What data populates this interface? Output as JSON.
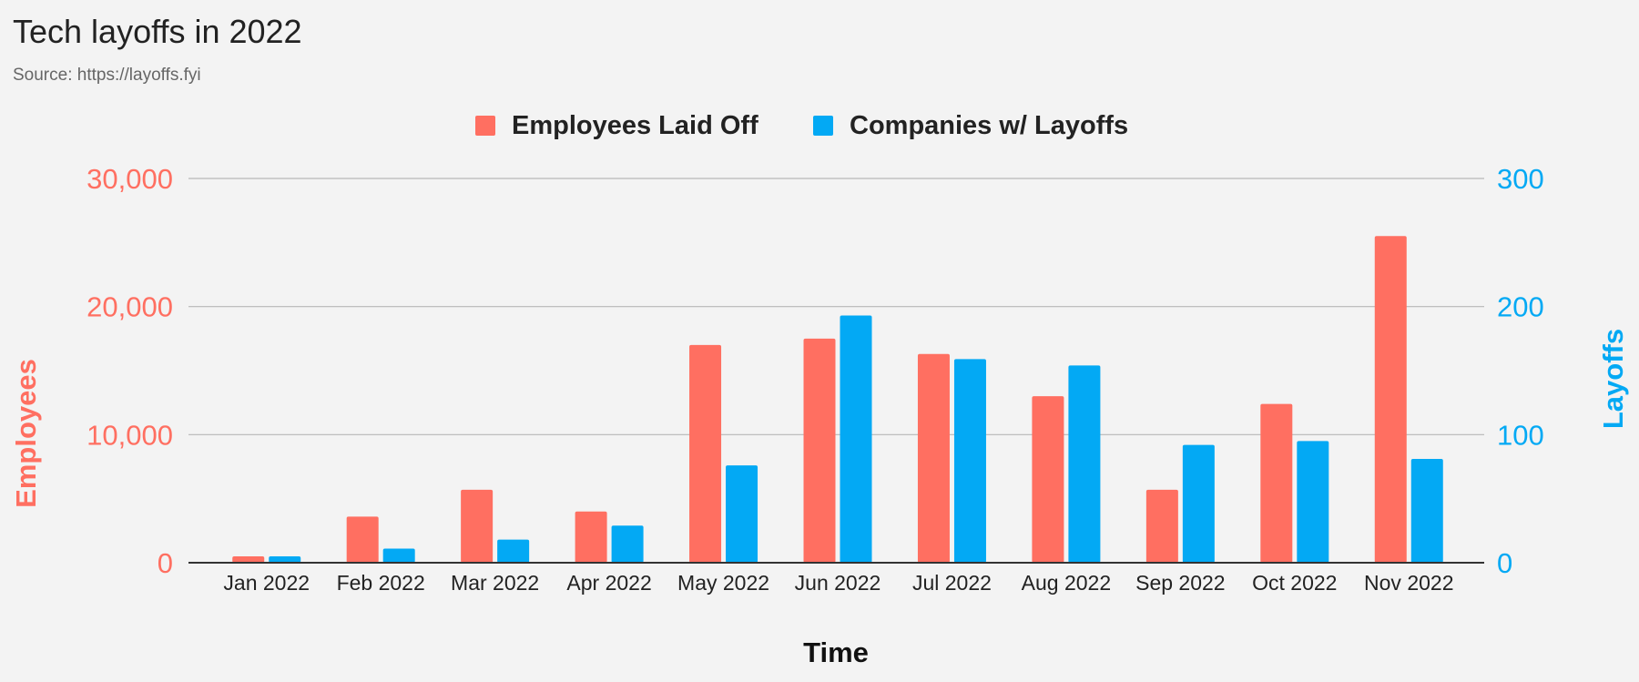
{
  "header": {
    "title": "Tech layoffs in 2022",
    "subtitle": "Source: https://layoffs.fyi"
  },
  "colors": {
    "employees": "#ff6f61",
    "companies": "#03a9f4",
    "gridline": "#b7b7b7",
    "baseline": "#333333",
    "text": "#222222",
    "subtitle": "#666666",
    "background": "#f3f3f3"
  },
  "chart_data": {
    "type": "bar",
    "title": "Tech layoffs in 2022",
    "subtitle": "Source: https://layoffs.fyi",
    "xlabel": "Time",
    "ylabel_left": "Employees",
    "ylabel_right": "Layoffs",
    "legend_position": "top-center",
    "grid": true,
    "categories": [
      "Jan 2022",
      "Feb 2022",
      "Mar 2022",
      "Apr 2022",
      "May 2022",
      "Jun 2022",
      "Jul 2022",
      "Aug 2022",
      "Sep 2022",
      "Oct 2022",
      "Nov 2022"
    ],
    "ylim_left": [
      0,
      30000
    ],
    "ylim_right": [
      0,
      300
    ],
    "yticks_left": [
      "0",
      "10,000",
      "20,000",
      "30,000"
    ],
    "yticks_right": [
      "0",
      "100",
      "200",
      "300"
    ],
    "series": [
      {
        "name": "Employees Laid Off",
        "axis": "left",
        "color": "#ff6f61",
        "values": [
          500,
          3600,
          5700,
          4000,
          17000,
          17500,
          16300,
          13000,
          5700,
          12400,
          25500
        ]
      },
      {
        "name": "Companies w/ Layoffs",
        "axis": "right",
        "color": "#03a9f4",
        "values": [
          5,
          11,
          18,
          29,
          76,
          193,
          159,
          154,
          92,
          95,
          81
        ]
      }
    ]
  }
}
